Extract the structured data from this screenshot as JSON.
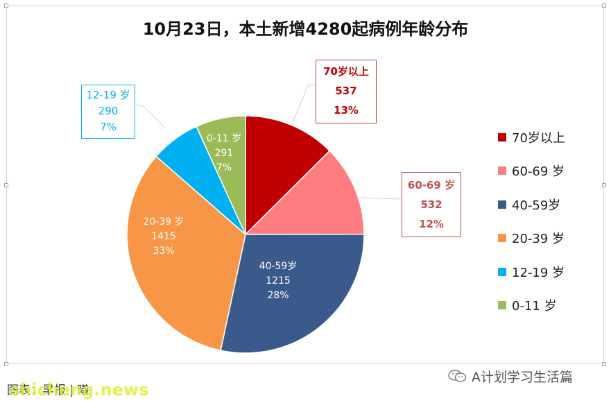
{
  "chart_data": {
    "type": "pie",
    "title": "10月23日，本土新增4280起病例年龄分布",
    "series": [
      {
        "name": "70岁以上",
        "value": 537,
        "percent": "13%",
        "color": "#C00000"
      },
      {
        "name": "60-69 岁",
        "value": 532,
        "percent": "12%",
        "color": "#FF7C80"
      },
      {
        "name": "40-59岁",
        "value": 1215,
        "percent": "28%",
        "color": "#3A5A8C"
      },
      {
        "name": "20-39 岁",
        "value": 1415,
        "percent": "33%",
        "color": "#F79646"
      },
      {
        "name": "12-19 岁",
        "value": 290,
        "percent": "7%",
        "color": "#00B0F0"
      },
      {
        "name": "0-11 岁",
        "value": 291,
        "percent": "7%",
        "color": "#9BBB59"
      }
    ],
    "legend": {
      "position": "right",
      "items": [
        "70岁以上",
        "60-69 岁",
        "40-59岁",
        "20-39 岁",
        "12-19 岁",
        "0-11 岁"
      ]
    }
  },
  "labels": {
    "s0": {
      "name": "70岁以上",
      "value": "537",
      "pct": "13%"
    },
    "s1": {
      "name": "60-69 岁",
      "value": "532",
      "pct": "12%"
    },
    "s2": {
      "name": "40-59岁",
      "value": "1215",
      "pct": "28%"
    },
    "s3": {
      "name": "20-39 岁",
      "value": "1415",
      "pct": "33%"
    },
    "s4": {
      "name": "12-19 岁",
      "value": "290",
      "pct": "7%"
    },
    "s5": {
      "name": "0-11 岁",
      "value": "291",
      "pct": "7%"
    }
  },
  "footer": {
    "source": "图表：早报 | 曦",
    "account": "A计划学习生活篇",
    "watermark": "shicheng.news"
  },
  "colors": {
    "frame_border": "#c9d6cf",
    "callout_red": "#C0392B",
    "callout_pink": "#C0504D",
    "callout_blue": "#00B0F0"
  }
}
